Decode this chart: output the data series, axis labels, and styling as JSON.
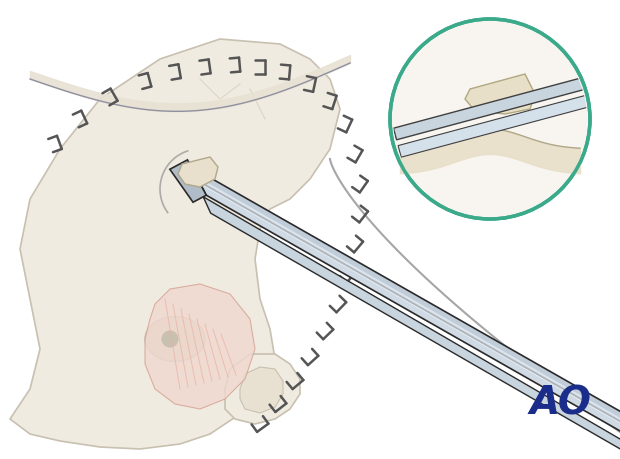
{
  "bg_color": "#ffffff",
  "skull_color": "#f0ebe0",
  "skull_outline": "#c8c0b0",
  "muscle_color": "#f0d8d0",
  "muscle_lines": "#e8b0a0",
  "bone_graft_color": "#e8e0cc",
  "staple_color": "#888888",
  "staple_outline": "#555555",
  "instrument_upper": "#b8c8d8",
  "instrument_lower": "#c8d4dc",
  "instrument_outline": "#404040",
  "instrument_edge": "#2a2a2a",
  "inset_circle_color": "#3aaa8a",
  "ao_color": "#1a2d8a",
  "title": "",
  "figsize": [
    6.2,
    4.6
  ],
  "dpi": 100
}
